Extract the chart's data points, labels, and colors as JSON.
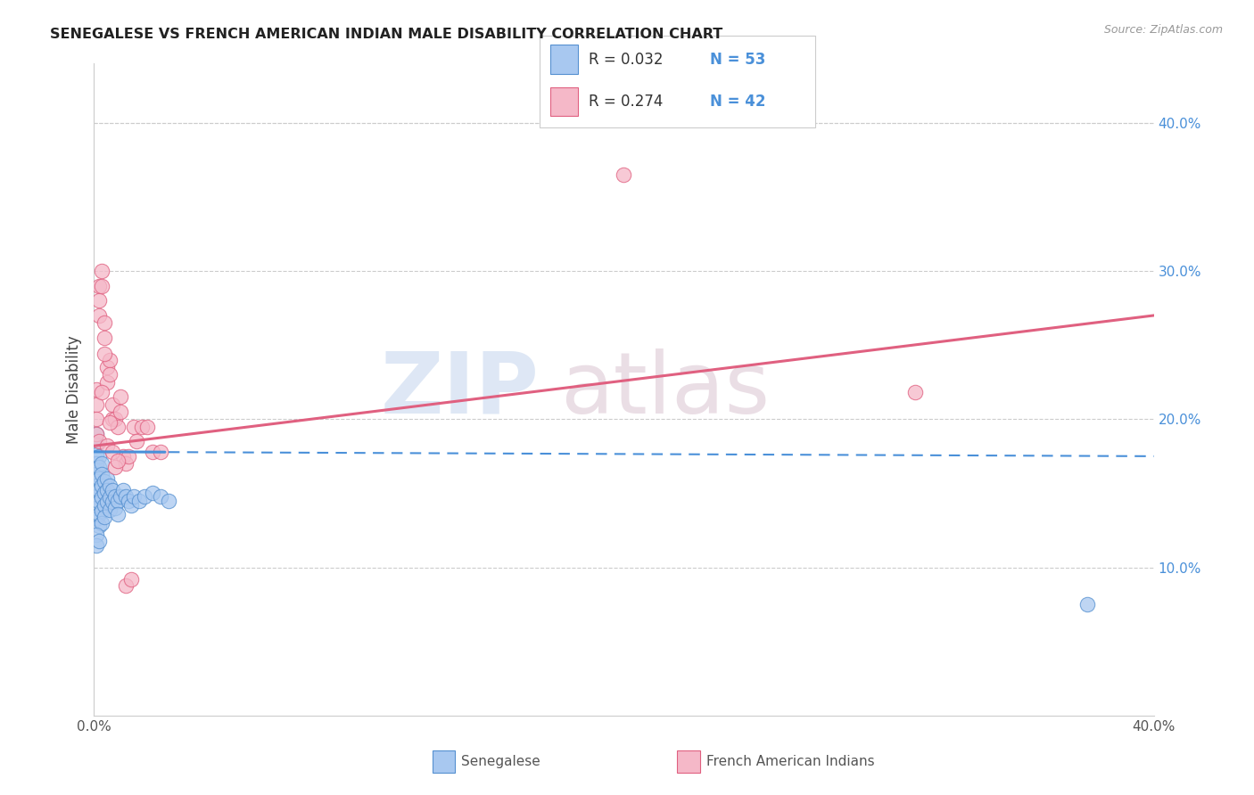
{
  "title": "SENEGALESE VS FRENCH AMERICAN INDIAN MALE DISABILITY CORRELATION CHART",
  "source": "Source: ZipAtlas.com",
  "ylabel": "Male Disability",
  "x_min": 0.0,
  "x_max": 0.4,
  "y_min": 0.0,
  "y_max": 0.44,
  "right_yticks": [
    0.1,
    0.2,
    0.3,
    0.4
  ],
  "right_ytick_labels": [
    "10.0%",
    "20.0%",
    "30.0%",
    "40.0%"
  ],
  "senegalese_color": "#a8c8f0",
  "french_color": "#f5b8c8",
  "senegalese_edge": "#5590d0",
  "french_edge": "#e06080",
  "trend_blue": "#4a90d9",
  "trend_pink": "#e06080",
  "senegalese_x": [
    0.001,
    0.001,
    0.001,
    0.001,
    0.001,
    0.001,
    0.001,
    0.001,
    0.001,
    0.002,
    0.002,
    0.002,
    0.002,
    0.002,
    0.002,
    0.002,
    0.003,
    0.003,
    0.003,
    0.003,
    0.003,
    0.003,
    0.004,
    0.004,
    0.004,
    0.004,
    0.005,
    0.005,
    0.005,
    0.006,
    0.006,
    0.006,
    0.007,
    0.007,
    0.008,
    0.008,
    0.009,
    0.009,
    0.01,
    0.011,
    0.012,
    0.013,
    0.014,
    0.015,
    0.017,
    0.019,
    0.022,
    0.025,
    0.028,
    0.001,
    0.001,
    0.002,
    0.375
  ],
  "senegalese_y": [
    0.19,
    0.183,
    0.176,
    0.17,
    0.163,
    0.155,
    0.148,
    0.14,
    0.133,
    0.175,
    0.168,
    0.16,
    0.152,
    0.144,
    0.136,
    0.128,
    0.17,
    0.163,
    0.155,
    0.147,
    0.138,
    0.13,
    0.158,
    0.15,
    0.142,
    0.134,
    0.16,
    0.152,
    0.144,
    0.155,
    0.147,
    0.139,
    0.152,
    0.144,
    0.148,
    0.14,
    0.145,
    0.136,
    0.148,
    0.152,
    0.148,
    0.145,
    0.142,
    0.148,
    0.145,
    0.148,
    0.15,
    0.148,
    0.145,
    0.122,
    0.115,
    0.118,
    0.075
  ],
  "french_x": [
    0.001,
    0.001,
    0.001,
    0.001,
    0.002,
    0.002,
    0.002,
    0.003,
    0.003,
    0.004,
    0.004,
    0.005,
    0.005,
    0.006,
    0.006,
    0.007,
    0.007,
    0.008,
    0.009,
    0.01,
    0.01,
    0.011,
    0.012,
    0.013,
    0.015,
    0.016,
    0.018,
    0.02,
    0.022,
    0.002,
    0.003,
    0.004,
    0.005,
    0.006,
    0.007,
    0.008,
    0.009,
    0.012,
    0.014,
    0.025,
    0.31,
    0.2
  ],
  "french_y": [
    0.22,
    0.21,
    0.2,
    0.19,
    0.29,
    0.28,
    0.27,
    0.3,
    0.29,
    0.265,
    0.255,
    0.235,
    0.225,
    0.24,
    0.23,
    0.21,
    0.2,
    0.2,
    0.195,
    0.215,
    0.205,
    0.175,
    0.17,
    0.175,
    0.195,
    0.185,
    0.195,
    0.195,
    0.178,
    0.185,
    0.218,
    0.244,
    0.182,
    0.198,
    0.178,
    0.168,
    0.172,
    0.088,
    0.092,
    0.178,
    0.218,
    0.365
  ]
}
